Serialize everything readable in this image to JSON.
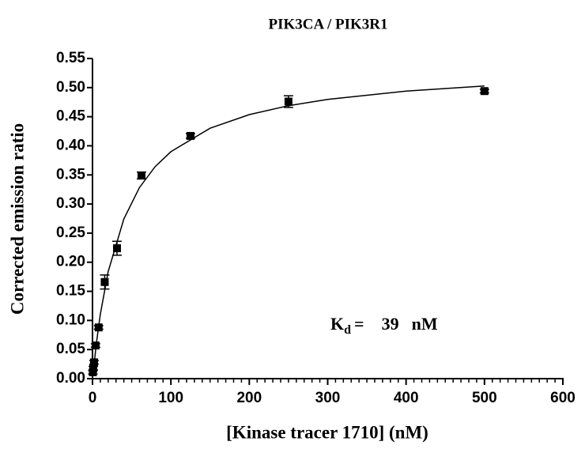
{
  "chart_data": {
    "type": "scatter",
    "title": "PIK3CA / PIK3R1",
    "x_label": "[Kinase tracer 1710] (nM)",
    "y_label": "Corrected emission ratio",
    "x": [
      0.49,
      0.98,
      1.95,
      3.9,
      7.8,
      15.6,
      31.25,
      62.5,
      125,
      250,
      500
    ],
    "values": [
      0.011,
      0.018,
      0.028,
      0.057,
      0.088,
      0.166,
      0.224,
      0.349,
      0.417,
      0.476,
      0.494
    ],
    "errors": [
      0.003,
      0.003,
      0.003,
      0.003,
      0.003,
      0.012,
      0.012,
      0.006,
      0.004,
      0.01,
      0.003
    ],
    "color": "#000000",
    "curve": {
      "x": [
        0,
        5,
        10,
        20,
        40,
        60,
        80,
        100,
        150,
        200,
        250,
        300,
        400,
        500
      ],
      "values": [
        0,
        0.0616,
        0.1106,
        0.1837,
        0.2744,
        0.3285,
        0.3644,
        0.3899,
        0.4302,
        0.4536,
        0.4689,
        0.4796,
        0.4939,
        0.5028
      ]
    },
    "annotation": {
      "symbol": "K",
      "subscript": "d",
      "equals": "=",
      "value": "39",
      "unit": "nM"
    },
    "xlim": [
      0,
      600
    ],
    "xticks": [
      0,
      100,
      200,
      300,
      400,
      500,
      600
    ],
    "ylim": [
      0,
      0.55
    ],
    "yticks": [
      {
        "value": 0,
        "label": "0.00"
      },
      0.05,
      {
        "value": 0.1,
        "label": "0.10"
      },
      0.15,
      {
        "value": 0.2,
        "label": "0.20"
      },
      0.25,
      {
        "value": 0.3,
        "label": "0.30"
      },
      0.35,
      {
        "value": 0.4,
        "label": "0.40"
      },
      0.45,
      {
        "value": 0.5,
        "label": "0.50"
      },
      0.55
    ]
  }
}
